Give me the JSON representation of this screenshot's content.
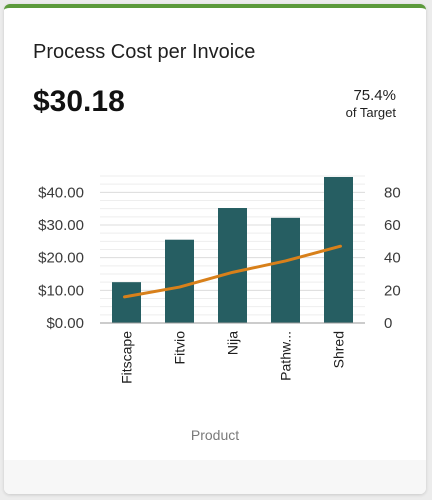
{
  "card": {
    "title": "Process Cost per Invoice",
    "value": "$30.18",
    "target_percent": "75.4%",
    "target_label": "of Target"
  },
  "colors": {
    "accent": "#5c9a3b",
    "bar": "#265e62",
    "line": "#d8801a"
  },
  "chart_data": {
    "type": "bar",
    "categories": [
      "Fitscape",
      "Fitvio",
      "Nija",
      "Pathw...",
      "Shred"
    ],
    "series": [
      {
        "type": "bar",
        "axis": "left",
        "values": [
          12.5,
          25.5,
          35.2,
          32.2,
          44.7
        ]
      },
      {
        "type": "line",
        "axis": "right",
        "values": [
          16,
          22,
          31,
          38,
          47
        ]
      }
    ],
    "y_left": {
      "ticks": [
        "$0.00",
        "$10.00",
        "$20.00",
        "$30.00",
        "$40.00"
      ],
      "tick_values": [
        0,
        10,
        20,
        30,
        40
      ],
      "ylim": [
        0,
        45
      ]
    },
    "y_right": {
      "ticks": [
        "0",
        "20",
        "40",
        "60",
        "80"
      ],
      "tick_values": [
        0,
        20,
        40,
        60,
        80
      ],
      "ylim": [
        0,
        90
      ]
    },
    "xlabel": "Product",
    "grid": true
  }
}
